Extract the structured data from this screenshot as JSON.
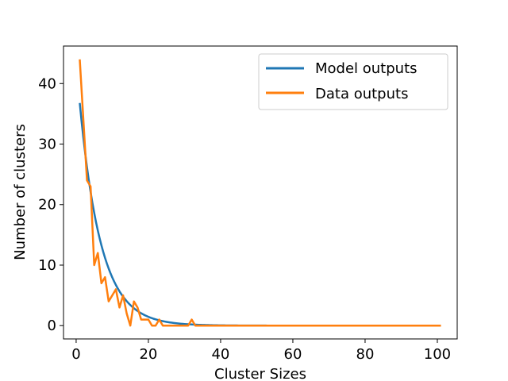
{
  "chart_data": {
    "type": "line",
    "title": "",
    "xlabel": "Cluster Sizes",
    "ylabel": "Number of clusters",
    "xlim": [
      -3.5,
      105.5
    ],
    "ylim": [
      -2.2,
      46.2
    ],
    "xticks": [
      0,
      20,
      40,
      60,
      80,
      100
    ],
    "yticks": [
      0,
      10,
      20,
      30,
      40
    ],
    "grid": false,
    "legend_position": "top-right",
    "series": [
      {
        "name": "Model outputs",
        "color": "#1f77b4",
        "model": {
          "form": "exponential_decay",
          "a": 43.6,
          "b": 0.17,
          "x_start": 1,
          "x_end": 101
        }
      },
      {
        "name": "Data outputs",
        "color": "#ff7f0e",
        "points": [
          [
            1,
            44
          ],
          [
            2,
            34
          ],
          [
            3,
            24
          ],
          [
            4,
            23
          ],
          [
            5,
            10
          ],
          [
            6,
            12
          ],
          [
            7,
            7
          ],
          [
            8,
            8
          ],
          [
            9,
            4
          ],
          [
            10,
            5
          ],
          [
            11,
            6
          ],
          [
            12,
            3
          ],
          [
            13,
            5
          ],
          [
            14,
            2
          ],
          [
            15,
            0
          ],
          [
            16,
            4
          ],
          [
            17,
            3
          ],
          [
            18,
            1
          ],
          [
            19,
            1
          ],
          [
            20,
            1
          ],
          [
            21,
            0
          ],
          [
            22,
            0
          ],
          [
            23,
            1
          ],
          [
            24,
            0
          ],
          [
            25,
            0
          ],
          [
            26,
            0
          ],
          [
            27,
            0
          ],
          [
            28,
            0
          ],
          [
            29,
            0
          ],
          [
            30,
            0
          ],
          [
            31,
            0
          ],
          [
            32,
            1
          ],
          [
            33,
            0
          ],
          [
            40,
            0
          ],
          [
            60,
            0
          ],
          [
            80,
            0
          ],
          [
            101,
            0
          ]
        ]
      }
    ]
  }
}
